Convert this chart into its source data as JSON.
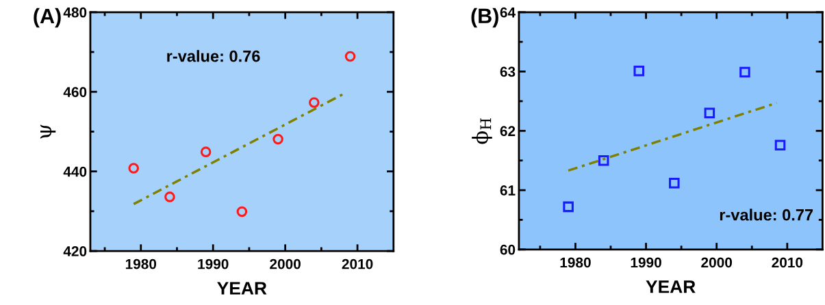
{
  "chart_data": [
    {
      "type": "scatter",
      "title": "(A)",
      "xlabel": "YEAR",
      "ylabel": "ψ",
      "xlim": [
        1973,
        2015
      ],
      "xticks": [
        1980,
        1990,
        2000,
        2010
      ],
      "ylim": [
        420,
        480
      ],
      "yticks": [
        420,
        440,
        460,
        480
      ],
      "grid": false,
      "legend": false,
      "marker": "circle",
      "series": [
        {
          "color": "#ff1a1a",
          "x": [
            1979,
            1984,
            1989,
            1994,
            1999,
            2004,
            2009
          ],
          "values": [
            440.8,
            433.6,
            444.9,
            429.9,
            448.1,
            457.3,
            468.9
          ]
        },
        {
          "type": "line",
          "color": "#808000",
          "line_style": "dashdot",
          "marker": "none",
          "x": [
            1979,
            2008
          ],
          "values": [
            431.8,
            459.4
          ]
        }
      ],
      "annotations": [
        "r-value: 0.76"
      ]
    },
    {
      "type": "scatter",
      "title": "(B)",
      "xlabel": "YEAR",
      "ylabel": "ϕ$_{H}$",
      "xlim": [
        1972,
        2015
      ],
      "xticks": [
        1980,
        1990,
        2000,
        2010
      ],
      "ylim": [
        60,
        64
      ],
      "yticks": [
        60,
        61,
        62,
        63,
        64
      ],
      "grid": false,
      "legend": false,
      "marker": "square",
      "series": [
        {
          "color": "#1a1aff",
          "x": [
            1979,
            1984,
            1989,
            1994,
            1999,
            2004,
            2009
          ],
          "values": [
            60.72,
            61.5,
            63.01,
            61.12,
            62.3,
            62.99,
            61.76
          ]
        },
        {
          "type": "line",
          "color": "#808000",
          "line_style": "dashdot",
          "marker": "none",
          "x": [
            1979,
            2008.5
          ],
          "values": [
            61.33,
            62.47
          ]
        }
      ],
      "annotations": [
        "r-value: 0.77"
      ]
    }
  ]
}
